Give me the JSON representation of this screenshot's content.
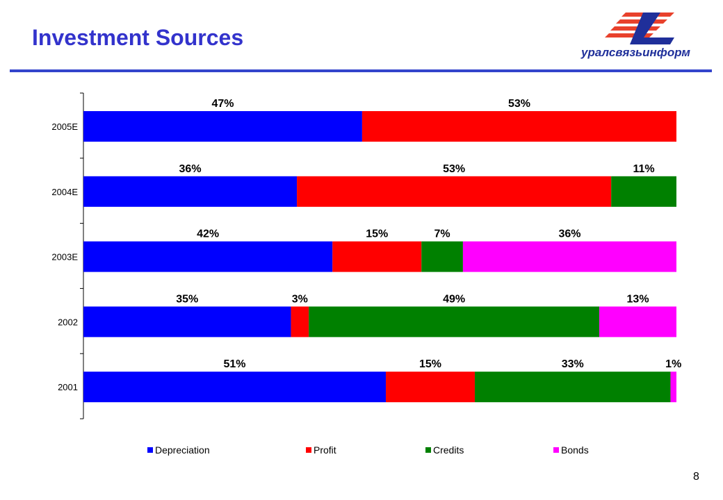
{
  "title": "Investment Sources",
  "logo_text": "уралсвязьинформ",
  "page_number": "8",
  "colors": {
    "title": "#3333cc",
    "depreciation": "#0000ff",
    "profit": "#ff0000",
    "credits": "#008000",
    "bonds": "#ff00ff",
    "logo_red": "#e8412c",
    "logo_blue": "#1f2f9a"
  },
  "chart_data": {
    "type": "bar",
    "orientation": "horizontal",
    "stacked": true,
    "categories": [
      "2005E",
      "2004E",
      "2003E",
      "2002",
      "2001"
    ],
    "series": [
      {
        "name": "Depreciation",
        "values": [
          47,
          36,
          42,
          35,
          51
        ],
        "labels": [
          "47%",
          "36%",
          "42%",
          "35%",
          "51%"
        ],
        "color": "#0000ff"
      },
      {
        "name": "Profit",
        "values": [
          53,
          53,
          15,
          3,
          15
        ],
        "labels": [
          "53%",
          "53%",
          "15%",
          "3%",
          "15%"
        ],
        "color": "#ff0000"
      },
      {
        "name": "Credits",
        "values": [
          0,
          11,
          7,
          49,
          33
        ],
        "labels": [
          "",
          "11%",
          "7%",
          "49%",
          "33%"
        ],
        "color": "#008000"
      },
      {
        "name": "Bonds",
        "values": [
          0,
          0,
          36,
          13,
          1
        ],
        "labels": [
          "",
          "",
          "36%",
          "13%",
          "1%"
        ],
        "color": "#ff00ff"
      }
    ],
    "xlim": [
      0,
      100
    ],
    "grid": false,
    "legend": "bottom"
  }
}
